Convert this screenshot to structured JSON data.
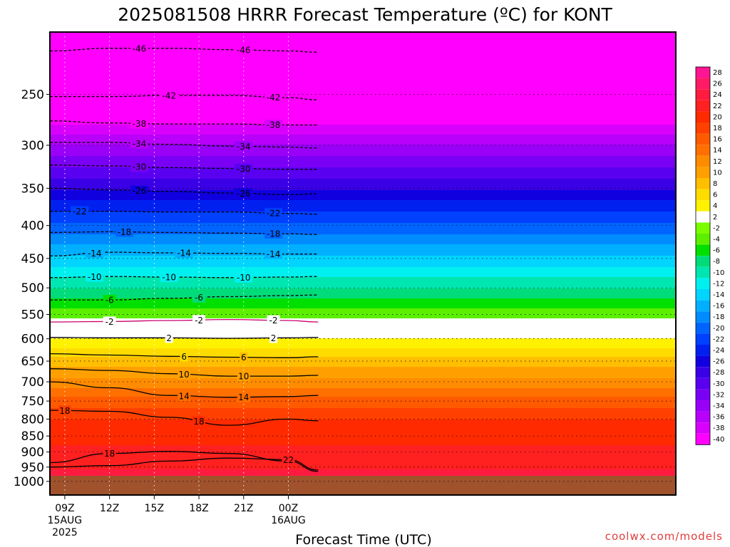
{
  "chart_data": {
    "type": "heatmap",
    "title": "2025081508 HRRR Forecast Temperature (ºC) for KONT",
    "xlabel": "Forecast Time (UTC)",
    "ylabel": "",
    "y_scale": "log-pressure",
    "ylim": [
      1050,
      200
    ],
    "xlim": [
      "2025-08-15 08:00",
      "2025-08-17 02:00"
    ],
    "y_ticks": [
      250,
      300,
      350,
      400,
      450,
      500,
      550,
      600,
      650,
      700,
      750,
      800,
      850,
      900,
      950,
      1000
    ],
    "x_ticks": [
      {
        "x": "2025-08-15 09:00",
        "label": "09Z",
        "sub1": "15AUG",
        "sub2": "2025"
      },
      {
        "x": "2025-08-15 12:00",
        "label": "12Z",
        "sub1": "",
        "sub2": ""
      },
      {
        "x": "2025-08-15 15:00",
        "label": "15Z",
        "sub1": "",
        "sub2": ""
      },
      {
        "x": "2025-08-15 18:00",
        "label": "18Z",
        "sub1": "",
        "sub2": ""
      },
      {
        "x": "2025-08-15 21:00",
        "label": "21Z",
        "sub1": "",
        "sub2": ""
      },
      {
        "x": "2025-08-16 00:00",
        "label": "00Z",
        "sub1": "16AUG",
        "sub2": ""
      }
    ],
    "surface_pressure_hpa": 980,
    "underground_color": "#a0522d",
    "temperature_profile": [
      {
        "p": 200,
        "t": -50
      },
      {
        "p": 215,
        "t": -46
      },
      {
        "p": 252,
        "t": -42
      },
      {
        "p": 278,
        "t": -38
      },
      {
        "p": 300,
        "t": -34
      },
      {
        "p": 325,
        "t": -30
      },
      {
        "p": 352,
        "t": -26
      },
      {
        "p": 380,
        "t": -22
      },
      {
        "p": 412,
        "t": -18
      },
      {
        "p": 445,
        "t": -14
      },
      {
        "p": 482,
        "t": -10
      },
      {
        "p": 520,
        "t": -6
      },
      {
        "p": 558,
        "t": -2
      },
      {
        "p": 600,
        "t": 2
      },
      {
        "p": 640,
        "t": 6
      },
      {
        "p": 690,
        "t": 10
      },
      {
        "p": 740,
        "t": 14
      },
      {
        "p": 800,
        "t": 18
      },
      {
        "p": 880,
        "t": 20
      },
      {
        "p": 960,
        "t": 22
      },
      {
        "p": 980,
        "t": 23
      }
    ],
    "colorbar": {
      "levels": [
        28,
        26,
        24,
        22,
        20,
        18,
        16,
        14,
        12,
        10,
        8,
        6,
        4,
        2,
        -2,
        -4,
        -6,
        -8,
        -10,
        -12,
        -14,
        -16,
        -18,
        -20,
        -22,
        -24,
        -26,
        -28,
        -30,
        -32,
        -34,
        -36,
        -38,
        -40
      ],
      "colors": [
        "#ff1493",
        "#ff1a66",
        "#ff1a40",
        "#ff2020",
        "#ff2a00",
        "#ff4000",
        "#ff5a00",
        "#ff7000",
        "#ff8c00",
        "#ffa000",
        "#ffbf00",
        "#ffdc00",
        "#fff200",
        "#ffffff",
        "#7cfc00",
        "#5cf000",
        "#00e000",
        "#00dc7a",
        "#00e6b0",
        "#00f0f0",
        "#00d4ff",
        "#00b0ff",
        "#008cff",
        "#0064ff",
        "#0040ff",
        "#0020f0",
        "#1000e0",
        "#3a00e6",
        "#5a00f0",
        "#7a00f5",
        "#9a00f8",
        "#b800fa",
        "#d800fc",
        "#ff00ff"
      ]
    },
    "contours": [
      {
        "label": "-46",
        "p": [
          214,
          212,
          212,
          213,
          214,
          215
        ],
        "labels_at": [
          "2025-08-15 14:00",
          "2025-08-15 21:00"
        ]
      },
      {
        "label": "-42",
        "p": [
          252,
          252,
          251,
          251,
          253,
          255
        ],
        "labels_at": [
          "2025-08-15 16:00",
          "2025-08-15 23:00"
        ]
      },
      {
        "label": "-38",
        "p": [
          275,
          277,
          278,
          278,
          279,
          279
        ],
        "labels_at": [
          "2025-08-15 14:00",
          "2025-08-15 23:00"
        ]
      },
      {
        "label": "-34",
        "p": [
          297,
          297,
          299,
          301,
          302,
          303
        ],
        "labels_at": [
          "2025-08-15 14:00",
          "2025-08-15 21:00"
        ]
      },
      {
        "label": "-30",
        "p": [
          322,
          323,
          325,
          326,
          327,
          327
        ],
        "labels_at": [
          "2025-08-15 14:00",
          "2025-08-15 21:00"
        ]
      },
      {
        "label": "-26",
        "p": [
          350,
          352,
          354,
          356,
          358,
          357
        ],
        "labels_at": [
          "2025-08-15 14:00",
          "2025-08-15 21:00"
        ]
      },
      {
        "label": "-22",
        "p": [
          380,
          380,
          381,
          381,
          383,
          384
        ],
        "labels_at": [
          "2025-08-15 10:00",
          "2025-08-15 23:00"
        ]
      },
      {
        "label": "-18",
        "p": [
          410,
          409,
          410,
          411,
          412,
          413
        ],
        "labels_at": [
          "2025-08-15 13:00",
          "2025-08-15 23:00"
        ]
      },
      {
        "label": "-14",
        "p": [
          446,
          440,
          441,
          442,
          443,
          443
        ],
        "labels_at": [
          "2025-08-15 11:00",
          "2025-08-15 17:00",
          "2025-08-15 23:00"
        ]
      },
      {
        "label": "-10",
        "p": [
          482,
          480,
          481,
          482,
          481,
          480
        ],
        "labels_at": [
          "2025-08-15 11:00",
          "2025-08-15 16:00",
          "2025-08-15 21:00"
        ]
      },
      {
        "label": "-6",
        "p": [
          522,
          522,
          519,
          516,
          514,
          513
        ],
        "labels_at": [
          "2025-08-15 12:00",
          "2025-08-15 18:00"
        ]
      },
      {
        "label": "-2",
        "p": [
          565,
          564,
          562,
          560,
          562,
          565
        ],
        "labels_at": [
          "2025-08-15 12:00",
          "2025-08-15 18:00",
          "2025-08-15 23:00"
        ]
      },
      {
        "label": "2",
        "p": [
          597,
          598,
          598,
          599,
          598,
          597
        ],
        "labels_at": [
          "2025-08-15 16:00",
          "2025-08-15 23:00"
        ]
      },
      {
        "label": "6",
        "p": [
          633,
          636,
          639,
          641,
          642,
          640
        ],
        "labels_at": [
          "2025-08-15 17:00",
          "2025-08-15 21:00"
        ]
      },
      {
        "label": "10",
        "p": [
          668,
          672,
          680,
          686,
          686,
          684
        ],
        "labels_at": [
          "2025-08-15 17:00",
          "2025-08-15 21:00"
        ]
      },
      {
        "label": "14",
        "p": [
          700,
          715,
          735,
          740,
          738,
          735
        ],
        "labels_at": [
          "2025-08-15 17:00",
          "2025-08-15 21:00"
        ]
      },
      {
        "label": "18",
        "p": [
          775,
          778,
          795,
          818,
          800,
          805
        ],
        "labels_at": [
          "2025-08-15 09:00",
          "2025-08-15 18:00"
        ]
      },
      {
        "label": "18",
        "p": [
          935,
          905,
          898,
          905,
          930,
          965
        ],
        "labels_at": [
          "2025-08-15 12:00"
        ]
      },
      {
        "label": "22",
        "p": [
          950,
          945,
          930,
          920,
          925,
          960
        ],
        "labels_at": [
          "2025-08-16 00:00"
        ]
      }
    ],
    "contour_times": [
      "2025-08-15 08:00",
      "2025-08-15 12:00",
      "2025-08-15 16:00",
      "2025-08-15 20:00",
      "2025-08-16 00:00",
      "2025-08-16 02:00"
    ]
  },
  "credit": "coolwx.com/models"
}
